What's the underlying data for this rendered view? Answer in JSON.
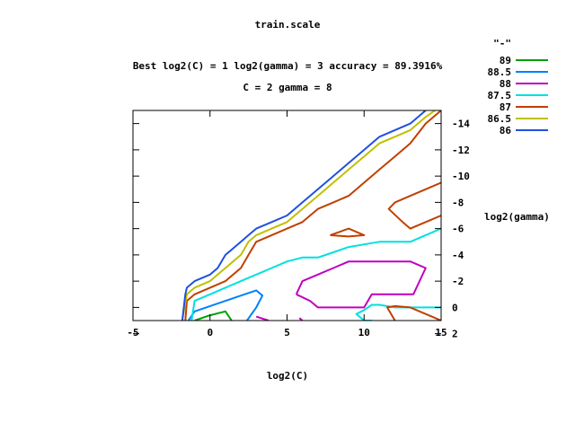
{
  "chart_data": {
    "type": "line",
    "title": "train.scale",
    "subtitle_1": "Best log2(C) = 1  log2(gamma) = 3  accuracy = 89.3916%",
    "subtitle_2": "C = 2  gamma = 8",
    "xlabel": "log2(C)",
    "ylabel": "log2(gamma)",
    "xlim": [
      -5,
      15
    ],
    "ylim": [
      1,
      -15
    ],
    "x_ticks": [
      {
        "v": -5,
        "label": "-5"
      },
      {
        "v": 0,
        "label": "0"
      },
      {
        "v": 5,
        "label": "5"
      },
      {
        "v": 10,
        "label": "10"
      },
      {
        "v": 15,
        "label": "15"
      }
    ],
    "y_ticks": [
      {
        "v": -14,
        "label": "-14"
      },
      {
        "v": -12,
        "label": "-12"
      },
      {
        "v": -10,
        "label": "-10"
      },
      {
        "v": -8,
        "label": "-8"
      },
      {
        "v": -6,
        "label": "-6"
      },
      {
        "v": -4,
        "label": "-4"
      },
      {
        "v": -2,
        "label": "-2"
      },
      {
        "v": 0,
        "label": "0"
      },
      {
        "v": 2,
        "label": "2"
      }
    ],
    "legend_title": "\"-\"",
    "legend_position": "top-right",
    "series": [
      {
        "name": "89",
        "color": "#00a000",
        "paths": [
          [
            [
              -1.0,
              1.0
            ],
            [
              0.0,
              0.6
            ],
            [
              1.0,
              0.3
            ],
            [
              1.4,
              1.0
            ]
          ]
        ]
      },
      {
        "name": "88.5",
        "color": "#0080ff",
        "paths": [
          [
            [
              -1.4,
              1.0
            ],
            [
              -1.0,
              0.3
            ],
            [
              0.0,
              -0.1
            ],
            [
              1.0,
              -0.5
            ],
            [
              2.0,
              -0.9
            ],
            [
              3.0,
              -1.3
            ],
            [
              3.4,
              -0.9
            ],
            [
              3.0,
              0.0
            ],
            [
              2.4,
              1.0
            ]
          ]
        ]
      },
      {
        "name": "88",
        "color": "#c000c0",
        "paths": [
          [
            [
              3.0,
              0.7
            ],
            [
              3.8,
              1.0
            ]
          ],
          [
            [
              5.8,
              0.8
            ],
            [
              6.0,
              1.0
            ]
          ],
          [
            [
              5.6,
              -1.0
            ],
            [
              6.0,
              -2.0
            ],
            [
              7.0,
              -2.5
            ],
            [
              8.0,
              -3.0
            ],
            [
              9.0,
              -3.5
            ],
            [
              10.0,
              -3.5
            ],
            [
              11.0,
              -3.5
            ],
            [
              12.0,
              -3.5
            ],
            [
              13.0,
              -3.5
            ],
            [
              14.0,
              -3.0
            ],
            [
              13.2,
              -1.0
            ],
            [
              12.0,
              -1.0
            ],
            [
              11.0,
              -1.0
            ],
            [
              10.5,
              -1.0
            ],
            [
              10.0,
              0.0
            ],
            [
              9.0,
              0.0
            ],
            [
              8.0,
              0.0
            ],
            [
              7.0,
              0.0
            ],
            [
              6.5,
              -0.5
            ],
            [
              5.6,
              -1.0
            ]
          ]
        ]
      },
      {
        "name": "87.5",
        "color": "#00e0e0",
        "paths": [
          [
            [
              -1.2,
              1.0
            ],
            [
              -1.0,
              -0.5
            ],
            [
              0.0,
              -1.0
            ],
            [
              1.0,
              -1.5
            ],
            [
              2.0,
              -2.0
            ],
            [
              3.0,
              -2.5
            ],
            [
              4.0,
              -3.0
            ],
            [
              5.0,
              -3.5
            ],
            [
              6.0,
              -3.8
            ],
            [
              7.0,
              -3.8
            ],
            [
              8.0,
              -4.2
            ],
            [
              9.0,
              -4.6
            ],
            [
              10.0,
              -4.8
            ],
            [
              11.0,
              -5.0
            ],
            [
              12.0,
              -5.0
            ],
            [
              13.0,
              -5.0
            ],
            [
              14.0,
              -5.5
            ],
            [
              15.0,
              -6.0
            ]
          ],
          [
            [
              15.0,
              0.0
            ],
            [
              14.0,
              0.0
            ],
            [
              13.0,
              0.0
            ],
            [
              12.0,
              0.0
            ],
            [
              11.0,
              -0.2
            ],
            [
              10.5,
              -0.2
            ],
            [
              10.0,
              0.2
            ],
            [
              9.5,
              0.5
            ],
            [
              10.0,
              1.0
            ],
            [
              10.5,
              1.0
            ]
          ]
        ]
      },
      {
        "name": "87",
        "color": "#c04000",
        "paths": [
          [
            [
              -1.6,
              1.0
            ],
            [
              -1.5,
              -0.5
            ],
            [
              -1.0,
              -1.0
            ],
            [
              0.0,
              -1.5
            ],
            [
              1.0,
              -2.0
            ],
            [
              2.0,
              -3.0
            ],
            [
              2.5,
              -4.0
            ],
            [
              3.0,
              -5.0
            ],
            [
              4.0,
              -5.5
            ],
            [
              5.0,
              -6.0
            ],
            [
              6.0,
              -6.5
            ],
            [
              7.0,
              -7.5
            ],
            [
              8.0,
              -8.0
            ],
            [
              9.0,
              -8.5
            ],
            [
              10.0,
              -9.5
            ],
            [
              11.0,
              -10.5
            ],
            [
              12.0,
              -11.5
            ],
            [
              13.0,
              -12.5
            ],
            [
              14.0,
              -14.0
            ],
            [
              15.0,
              -15.0
            ]
          ],
          [
            [
              7.8,
              -5.5
            ],
            [
              9.0,
              -6.0
            ],
            [
              10.0,
              -5.5
            ],
            [
              9.0,
              -5.4
            ],
            [
              7.8,
              -5.5
            ]
          ],
          [
            [
              15.0,
              -9.5
            ],
            [
              14.0,
              -9.0
            ],
            [
              13.0,
              -8.5
            ],
            [
              12.0,
              -8.0
            ],
            [
              11.6,
              -7.5
            ],
            [
              12.5,
              -6.5
            ],
            [
              13.0,
              -6.0
            ],
            [
              14.0,
              -6.5
            ],
            [
              15.0,
              -7.0
            ]
          ],
          [
            [
              15.0,
              1.0
            ],
            [
              14.0,
              0.5
            ],
            [
              13.0,
              0.0
            ],
            [
              12.0,
              -0.1
            ],
            [
              11.5,
              0.0
            ],
            [
              12.0,
              1.0
            ]
          ]
        ]
      },
      {
        "name": "86.5",
        "color": "#c0c000",
        "paths": [
          [
            [
              -1.8,
              1.0
            ],
            [
              -1.5,
              -1.0
            ],
            [
              -1.0,
              -1.5
            ],
            [
              0.0,
              -2.0
            ],
            [
              0.5,
              -2.5
            ],
            [
              1.0,
              -3.0
            ],
            [
              2.0,
              -4.0
            ],
            [
              2.5,
              -5.0
            ],
            [
              3.0,
              -5.5
            ],
            [
              4.0,
              -6.0
            ],
            [
              5.0,
              -6.5
            ],
            [
              6.0,
              -7.5
            ],
            [
              7.0,
              -8.5
            ],
            [
              8.0,
              -9.5
            ],
            [
              9.0,
              -10.5
            ],
            [
              10.0,
              -11.5
            ],
            [
              11.0,
              -12.5
            ],
            [
              12.0,
              -13.0
            ],
            [
              13.0,
              -13.5
            ],
            [
              14.0,
              -14.5
            ],
            [
              14.6,
              -15.0
            ]
          ]
        ]
      },
      {
        "name": "86",
        "color": "#2050e0",
        "paths": [
          [
            [
              -1.8,
              1.0
            ],
            [
              -1.6,
              -1.0
            ],
            [
              -1.5,
              -1.5
            ],
            [
              -1.0,
              -2.0
            ],
            [
              0.0,
              -2.5
            ],
            [
              0.5,
              -3.0
            ],
            [
              1.0,
              -4.0
            ],
            [
              2.0,
              -5.0
            ],
            [
              2.5,
              -5.5
            ],
            [
              3.0,
              -6.0
            ],
            [
              4.0,
              -6.5
            ],
            [
              5.0,
              -7.0
            ],
            [
              6.0,
              -8.0
            ],
            [
              7.0,
              -9.0
            ],
            [
              8.0,
              -10.0
            ],
            [
              9.0,
              -11.0
            ],
            [
              10.0,
              -12.0
            ],
            [
              11.0,
              -13.0
            ],
            [
              12.0,
              -13.5
            ],
            [
              13.0,
              -14.0
            ],
            [
              13.5,
              -14.5
            ],
            [
              14.0,
              -15.0
            ]
          ]
        ]
      }
    ]
  }
}
